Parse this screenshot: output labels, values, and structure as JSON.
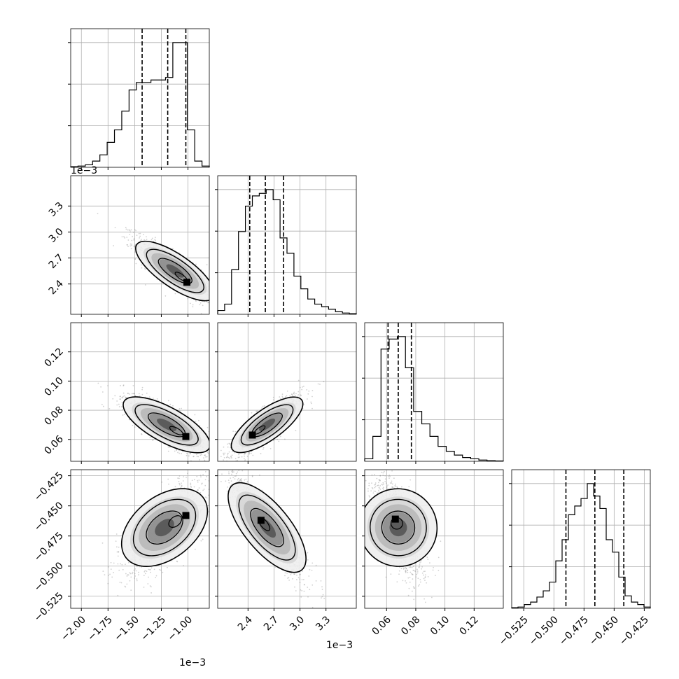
{
  "chart_data": {
    "type": "corner",
    "title": "",
    "grid": true,
    "colors": {
      "line": "#000000",
      "grid": "#b0b0b0",
      "scatter": "#7a7a7a"
    },
    "variables": [
      {
        "range": [
          -2.1,
          -0.8
        ],
        "ticks": [
          -2.0,
          -1.75,
          -1.5,
          -1.25,
          -1.0
        ],
        "tick_labels": [
          "−2.00",
          "−1.75",
          "−1.50",
          "−1.25",
          "−1.00"
        ],
        "offset_text": "1e−3",
        "mean": -1.25,
        "sd": 0.2,
        "quantiles": [
          -1.43,
          -1.19,
          -1.02
        ],
        "hist": [
          0.005,
          0.01,
          0.02,
          0.05,
          0.1,
          0.2,
          0.3,
          0.45,
          0.62,
          0.68,
          0.68,
          0.7,
          0.7,
          0.72,
          1.0,
          1.0,
          0.3,
          0.05,
          0.01
        ]
      },
      {
        "range": [
          2.05,
          3.65
        ],
        "ticks": [
          2.4,
          2.7,
          3.0,
          3.3
        ],
        "tick_labels": [
          "2.4",
          "2.7",
          "3.0",
          "3.3"
        ],
        "offset_text": "1e−3",
        "mean": 2.62,
        "sd": 0.2,
        "quantiles": [
          2.42,
          2.6,
          2.81
        ],
        "hist": [
          0.03,
          0.08,
          0.35,
          0.65,
          0.85,
          0.93,
          0.95,
          0.98,
          0.9,
          0.6,
          0.48,
          0.3,
          0.2,
          0.12,
          0.08,
          0.06,
          0.04,
          0.02,
          0.01,
          0.005
        ]
      },
      {
        "range": [
          0.045,
          0.14
        ],
        "ticks": [
          0.06,
          0.08,
          0.1,
          0.12
        ],
        "tick_labels": [
          "0.06",
          "0.08",
          "0.10",
          "0.12"
        ],
        "offset_text": "",
        "mean": 0.07,
        "sd": 0.01,
        "quantiles": [
          0.061,
          0.068,
          0.077
        ],
        "hist": [
          0.02,
          0.2,
          0.9,
          0.98,
          1.0,
          0.75,
          0.4,
          0.3,
          0.2,
          0.12,
          0.08,
          0.05,
          0.03,
          0.02,
          0.01,
          0.005,
          0.003
        ]
      },
      {
        "range": [
          -0.535,
          -0.42
        ],
        "ticks": [
          -0.525,
          -0.5,
          -0.475,
          -0.45,
          -0.425
        ],
        "tick_labels": [
          "−0.525",
          "−0.500",
          "−0.475",
          "−0.450",
          "−0.425"
        ],
        "offset_text": "",
        "mean": -0.47,
        "sd": 0.02,
        "quantiles": [
          -0.49,
          -0.466,
          -0.442
        ],
        "hist": [
          0.005,
          0.01,
          0.03,
          0.05,
          0.09,
          0.14,
          0.21,
          0.38,
          0.55,
          0.75,
          0.82,
          0.88,
          1.0,
          0.9,
          0.8,
          0.55,
          0.45,
          0.25,
          0.1,
          0.05,
          0.03,
          0.01
        ]
      }
    ],
    "pairs": [
      {
        "row": 1,
        "col": 0,
        "cx": -1.12,
        "cy": 2.55,
        "sx": 0.18,
        "sy": 0.18,
        "rho": -0.85,
        "peak_x": -1.01,
        "peak_y": 2.42
      },
      {
        "row": 2,
        "col": 0,
        "cx": -1.2,
        "cy": 0.07,
        "sx": 0.2,
        "sy": 0.01,
        "rho": -0.8,
        "peak_x": -1.02,
        "peak_y": 0.062
      },
      {
        "row": 2,
        "col": 1,
        "cx": 2.62,
        "cy": 0.07,
        "sx": 0.2,
        "sy": 0.01,
        "rho": 0.85,
        "peak_x": 2.45,
        "peak_y": 0.063
      },
      {
        "row": 3,
        "col": 0,
        "cx": -1.22,
        "cy": -0.468,
        "sx": 0.18,
        "sy": 0.018,
        "rho": 0.7,
        "peak_x": -1.02,
        "peak_y": -0.458
      },
      {
        "row": 3,
        "col": 1,
        "cx": 2.62,
        "cy": -0.468,
        "sx": 0.2,
        "sy": 0.02,
        "rho": -0.88,
        "peak_x": 2.55,
        "peak_y": -0.462
      },
      {
        "row": 3,
        "col": 2,
        "cx": 0.068,
        "cy": -0.468,
        "sx": 0.009,
        "sy": 0.02,
        "rho": -0.6,
        "peak_x": 0.066,
        "peak_y": -0.461
      }
    ]
  }
}
